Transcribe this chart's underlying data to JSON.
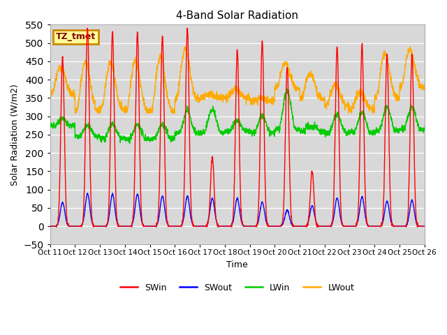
{
  "title": "4-Band Solar Radiation",
  "xlabel": "Time",
  "ylabel": "Solar Radiation (W/m2)",
  "ylim": [
    -50,
    550
  ],
  "yticks": [
    -50,
    0,
    50,
    100,
    150,
    200,
    250,
    300,
    350,
    400,
    450,
    500,
    550
  ],
  "background_color": "#d8d8d8",
  "figure_bg": "#ffffff",
  "label_box_text": "TZ_tmet",
  "label_box_facecolor": "#ffff99",
  "label_box_edgecolor": "#cc8800",
  "label_box_textcolor": "#880000",
  "colors": {
    "SWin": "#ff0000",
    "SWout": "#0000ff",
    "LWin": "#00cc00",
    "LWout": "#ffaa00"
  },
  "xtick_labels": [
    "Oct 11",
    "Oct 12",
    "Oct 13",
    "Oct 14",
    "Oct 15",
    "Oct 16",
    "Oct 17",
    "Oct 18",
    "Oct 19",
    "Oct 20",
    "Oct 21",
    "Oct 22",
    "Oct 23",
    "Oct 24",
    "Oct 25",
    "Oct 26"
  ],
  "n_days": 15,
  "pts_per_day": 144
}
